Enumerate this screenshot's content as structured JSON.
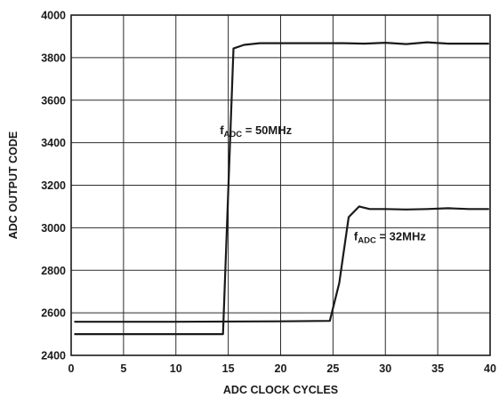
{
  "chart_data": {
    "type": "line",
    "title": "",
    "xlabel": "ADC CLOCK CYCLES",
    "ylabel": "ADC OUTPUT CODE",
    "xlim": [
      0,
      40
    ],
    "ylim": [
      2400,
      4000
    ],
    "xticks": [
      0,
      5,
      10,
      15,
      20,
      25,
      30,
      35,
      40
    ],
    "yticks": [
      2400,
      2600,
      2800,
      3000,
      3200,
      3400,
      3600,
      3800,
      4000
    ],
    "grid": true,
    "series": [
      {
        "name": "fADC = 50MHz",
        "label_main": "f",
        "label_sub": "ADC",
        "label_rest": " = 50MHz",
        "label_anchor": [
          14.2,
          3440
        ],
        "x": [
          0.3,
          14.5,
          15.5,
          16.5,
          18,
          20,
          22,
          24,
          26,
          28,
          30,
          32,
          34,
          36,
          38,
          39.9
        ],
        "y": [
          2500,
          2500,
          3843,
          3860,
          3868,
          3868,
          3868,
          3868,
          3868,
          3866,
          3870,
          3864,
          3872,
          3866,
          3866,
          3866
        ]
      },
      {
        "name": "fADC = 32MHz",
        "label_main": "f",
        "label_sub": "ADC",
        "label_rest": " = 32MHz",
        "label_anchor": [
          27,
          2940
        ],
        "x": [
          0.3,
          10,
          20,
          24.7,
          25.6,
          26.5,
          27.5,
          28.5,
          30,
          32,
          34,
          36,
          38,
          39.9
        ],
        "y": [
          2558,
          2558,
          2560,
          2562,
          2740,
          3050,
          3100,
          3088,
          3088,
          3086,
          3088,
          3092,
          3088,
          3088
        ]
      }
    ]
  }
}
